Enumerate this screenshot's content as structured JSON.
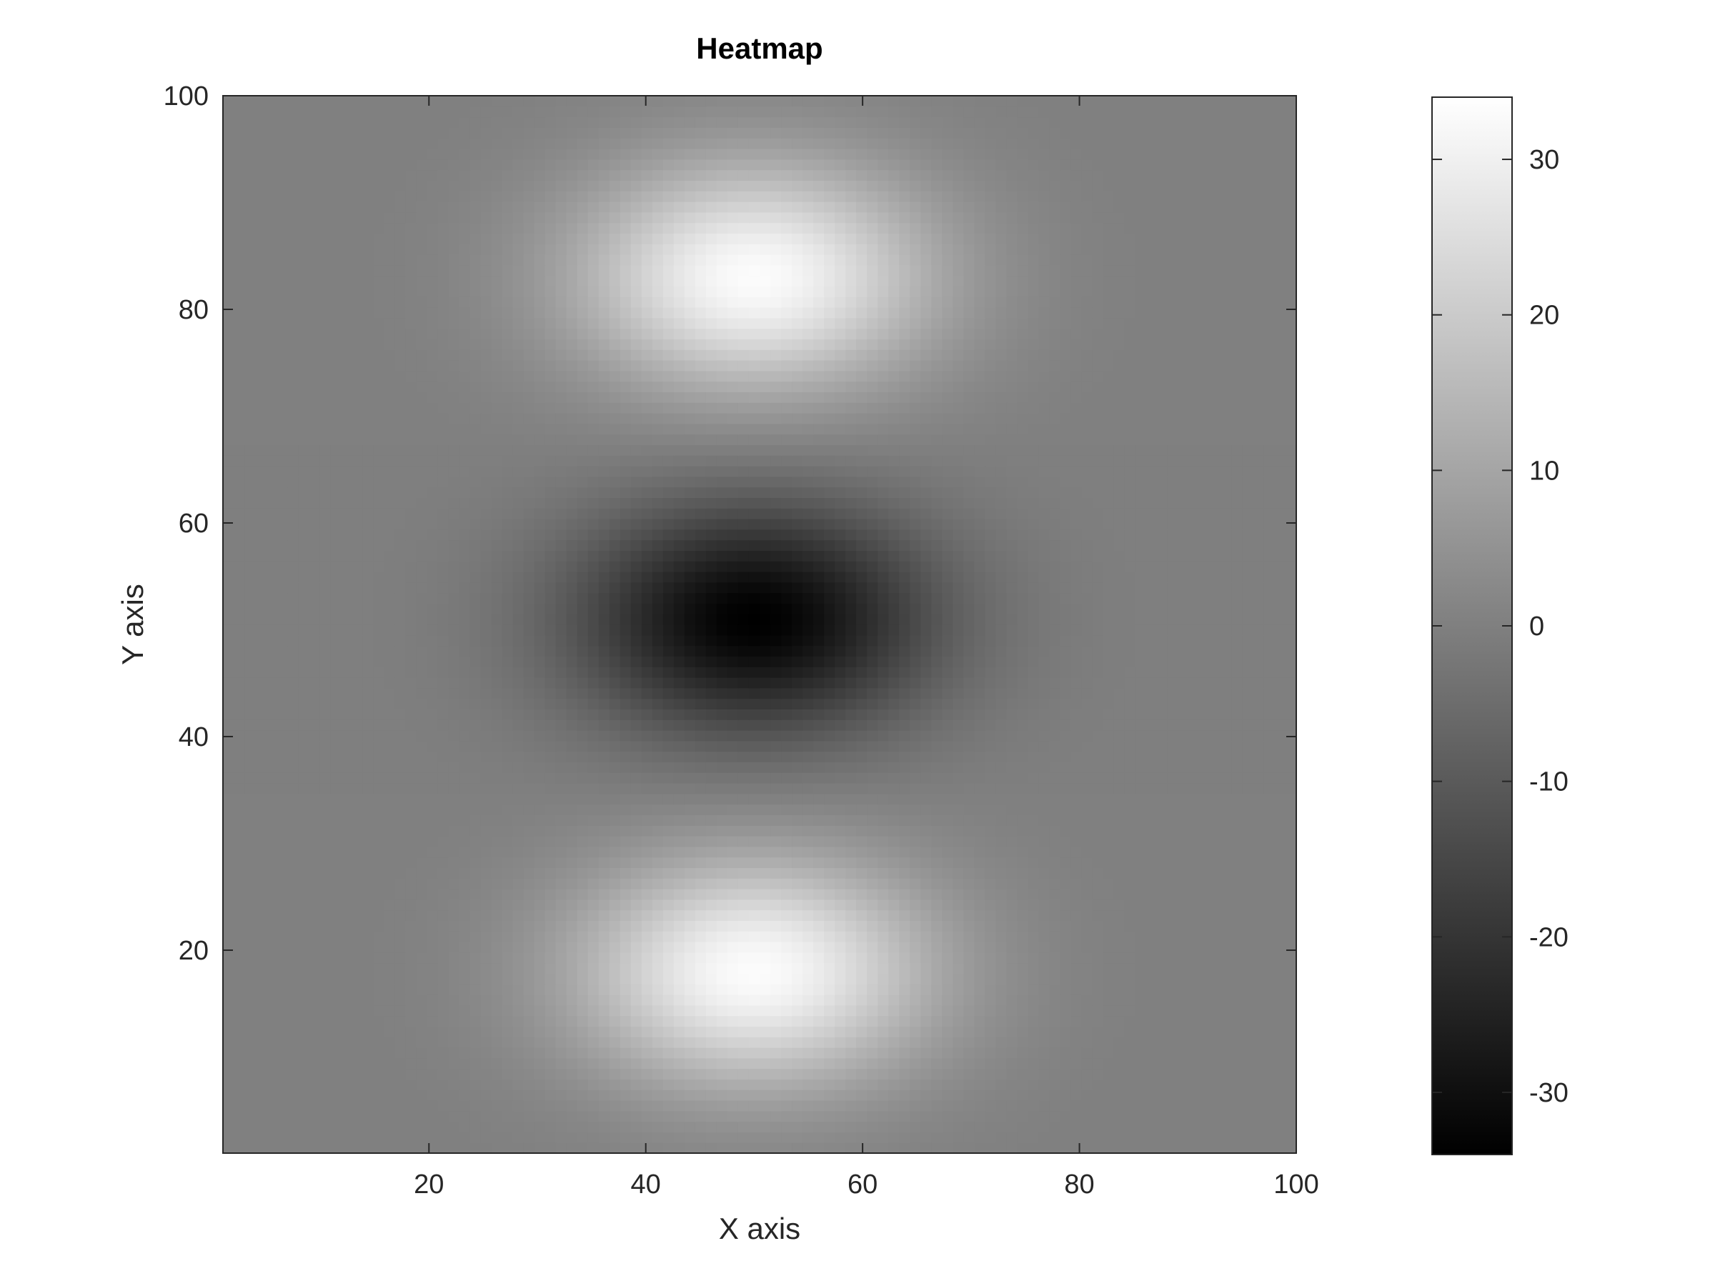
{
  "chart_data": {
    "type": "heatmap",
    "title": "Heatmap",
    "xlabel": "X axis",
    "ylabel": "Y axis",
    "xlim": [
      1,
      100
    ],
    "ylim": [
      1,
      100
    ],
    "x_ticks": [
      20,
      40,
      60,
      80,
      100
    ],
    "y_ticks": [
      20,
      40,
      60,
      80,
      100
    ],
    "x_tick_labels": [
      "20",
      "40",
      "60",
      "80",
      "100"
    ],
    "y_tick_labels": [
      "20",
      "40",
      "60",
      "80",
      "100"
    ],
    "colormap": "gray",
    "colormap_endpoints": [
      "#000000",
      "#ffffff"
    ],
    "clim": [
      -34,
      34
    ],
    "colorbar": {
      "location": "right",
      "ticks": [
        30,
        20,
        10,
        0,
        -10,
        -20,
        -30
      ],
      "tick_labels": [
        "30",
        "20",
        "10",
        "0",
        "-10",
        "-20",
        "-30"
      ]
    },
    "grid_size": [
      100,
      100
    ],
    "grid": false,
    "features": [
      {
        "kind": "peak",
        "x": 50,
        "y": 83,
        "value": 33
      },
      {
        "kind": "trough",
        "x": 50,
        "y": 51,
        "value": -34
      },
      {
        "kind": "peak",
        "x": 50,
        "y": 18,
        "value": 33
      }
    ]
  }
}
